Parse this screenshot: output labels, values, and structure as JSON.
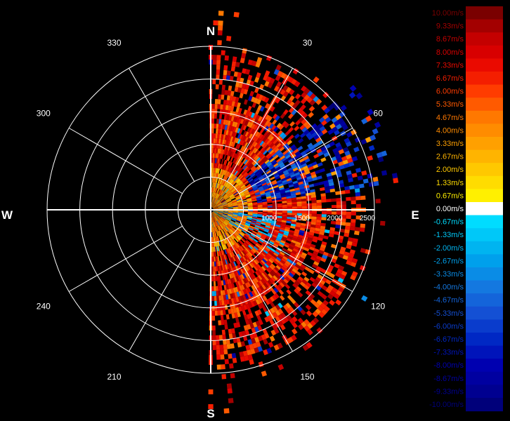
{
  "chart_data": {
    "type": "polar-radar-velocity",
    "cardinals": {
      "north": "N",
      "south": "S",
      "east": "E",
      "west": "W"
    },
    "angle_labels": [
      {
        "deg": 30,
        "text": "30"
      },
      {
        "deg": 60,
        "text": "60"
      },
      {
        "deg": 120,
        "text": "120"
      },
      {
        "deg": 150,
        "text": "150"
      },
      {
        "deg": 210,
        "text": "210"
      },
      {
        "deg": 240,
        "text": "240"
      },
      {
        "deg": 300,
        "text": "300"
      },
      {
        "deg": 330,
        "text": "330"
      }
    ],
    "range_labels": [
      "1000",
      "1500",
      "2000",
      "2500"
    ],
    "range_rings": [
      500,
      1000,
      1500,
      2000,
      2500
    ],
    "colorbar": {
      "levels": [
        "10.00m/s",
        "9.33m/s",
        "8.67m/s",
        "8.00m/s",
        "7.33m/s",
        "6.67m/s",
        "6.00m/s",
        "5.33m/s",
        "4.67m/s",
        "4.00m/s",
        "3.33m/s",
        "2.67m/s",
        "2.00m/s",
        "1.33m/s",
        "0.67m/s",
        "0.00m/s",
        "-0.67m/s",
        "-1.33m/s",
        "-2.00m/s",
        "-2.67m/s",
        "-3.33m/s",
        "-4.00m/s",
        "-4.67m/s",
        "-5.33m/s",
        "-6.00m/s",
        "-6.67m/s",
        "-7.33m/s",
        "-8.00m/s",
        "-8.67m/s",
        "-9.33m/s",
        "-10.00m/s"
      ],
      "colors": [
        "#7a0000",
        "#a30000",
        "#c40000",
        "#d80000",
        "#ea0a00",
        "#f41e00",
        "#ff3c00",
        "#ff5a00",
        "#ff7800",
        "#ff8c00",
        "#ffa000",
        "#ffb400",
        "#ffc800",
        "#ffdc00",
        "#fff000",
        "#ffffff",
        "#00dcff",
        "#00c8f8",
        "#00b4f0",
        "#00a0ec",
        "#0a8ce6",
        "#1478e0",
        "#1464da",
        "#1450d4",
        "#0a3ccc",
        "#0028c4",
        "#0014ba",
        "#0000b0",
        "#0000a0",
        "#000090",
        "#00007a"
      ]
    },
    "velocity_range": [
      -10.0,
      10.0
    ],
    "unit": "m/s",
    "max_range": 2500
  }
}
